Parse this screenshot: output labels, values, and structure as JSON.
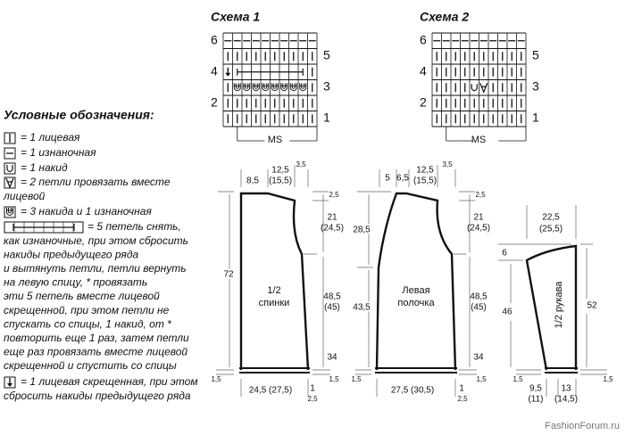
{
  "schemes": [
    {
      "title": "Схема 1",
      "rows_left": [
        "6",
        "4",
        "2"
      ],
      "rows_right": [
        "5",
        "3",
        "1"
      ],
      "repeat": "MS"
    },
    {
      "title": "Схема 2",
      "rows_left": [
        "6",
        "4",
        "2"
      ],
      "rows_right": [
        "5",
        "3",
        "1"
      ],
      "repeat": "MS"
    }
  ],
  "legend": {
    "title": "Условные обозначения:",
    "items": [
      {
        "lines": [
          "= 1 лицевая"
        ]
      },
      {
        "lines": [
          "= 1 изнаночная"
        ]
      },
      {
        "lines": [
          "= 1 накид"
        ]
      },
      {
        "lines": [
          "= 2 петли провязать вместе",
          "лицевой"
        ]
      },
      {
        "lines": [
          "= 3 накида и 1 изнаночная"
        ]
      },
      {
        "lines": [
          "= 5 петель снять,",
          "как изнаночные, при этом сбросить",
          "накиды предыдущего ряда",
          "и вытянуть петли, петли вернуть",
          "на левую спицу, * провязать",
          "эти 5 петель вместе лицевой",
          "скрещенной, при этом петли не",
          "спускать со спицы, 1 накид, от *",
          "повторить еще 1 раз, затем петли",
          "еще раз провязать вместе лицевой",
          "скрещенной и спустить со спицы"
        ]
      },
      {
        "lines": [
          "= 1 лицевая скрещенная, при этом",
          "сбросить накиды предыдущего ряда"
        ]
      }
    ]
  },
  "back": {
    "labels": [
      "8,5",
      "12,5",
      "(15,5)",
      "3,5",
      "2,5",
      "21",
      "(24,5)",
      "72",
      "1/2",
      "спинки",
      "48,5",
      "(45)",
      "34",
      "1,5",
      "1,5",
      "24,5 (27,5)",
      "1",
      "2,5"
    ]
  },
  "front": {
    "labels": [
      "5",
      "6,5",
      "12,5",
      "(15,5)",
      "3,5",
      "2,5",
      "28,5",
      "21",
      "(24,5)",
      "43,5",
      "Левая",
      "полочка",
      "48,5",
      "(45)",
      "34",
      "1,5",
      "1,5",
      "27,5 (30,5)",
      "1",
      "2,5"
    ]
  },
  "sleeve": {
    "labels": [
      "22,5",
      "(25,5)",
      "6",
      "46",
      "1/2 рукава",
      "52",
      "1,5",
      "1,5",
      "9,5",
      "(11)",
      "13",
      "(14,5)"
    ]
  },
  "watermark": "FashionForum.ru"
}
